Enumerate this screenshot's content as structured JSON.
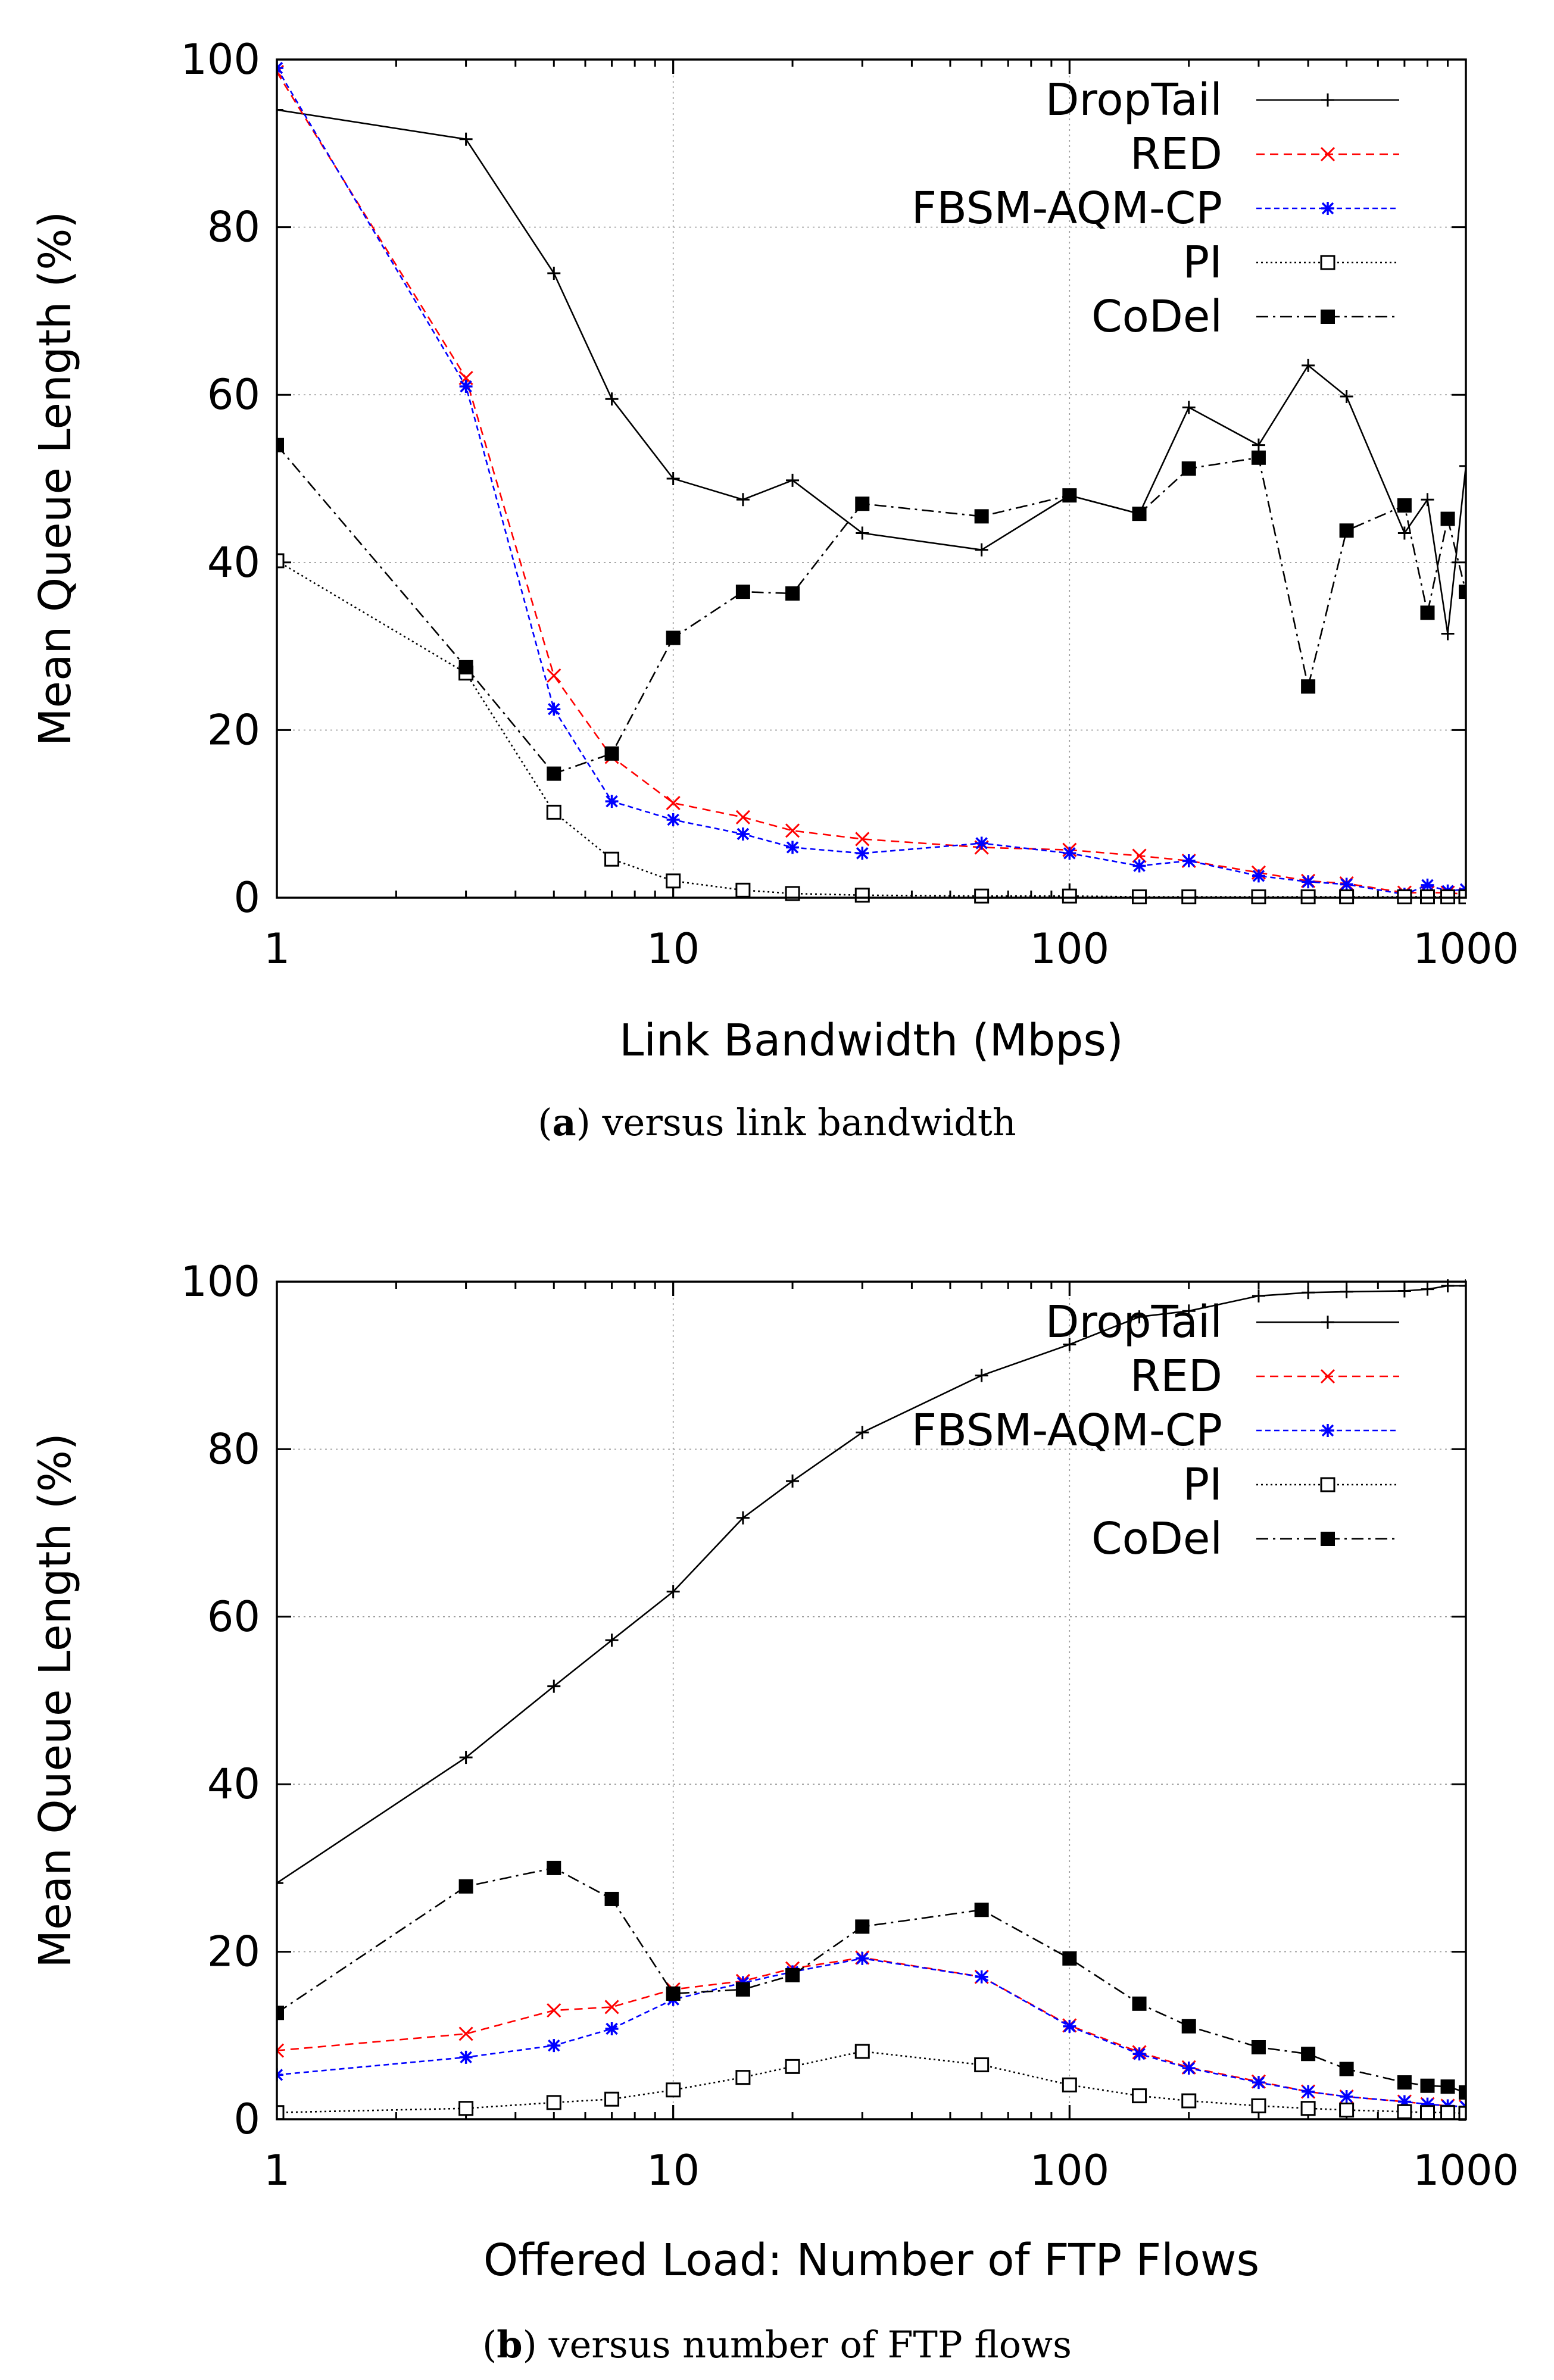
{
  "chart_data": [
    {
      "type": "line",
      "caption_label": "a",
      "caption_text": " versus link bandwidth",
      "xlabel": "Link Bandwidth (Mbps)",
      "ylabel": "Mean Queue Length (%)",
      "xscale": "log",
      "xlim": [
        1,
        1000
      ],
      "ylim": [
        0,
        100
      ],
      "xticks": [
        1,
        10,
        100,
        1000
      ],
      "xtick_labels": [
        "1",
        "10",
        "100",
        "1000"
      ],
      "yticks": [
        0,
        20,
        40,
        60,
        80,
        100
      ],
      "ytick_labels": [
        "0",
        "20",
        "40",
        "60",
        "80",
        "100"
      ],
      "grid": true,
      "legend_position": "top-right",
      "x": [
        1,
        3,
        5,
        7,
        10,
        15,
        20,
        30,
        60,
        100,
        150,
        200,
        300,
        400,
        500,
        700,
        800,
        900,
        1000
      ],
      "series": [
        {
          "name": "DropTail",
          "marker": "plus",
          "values": [
            94,
            90.5,
            74.5,
            59.5,
            50,
            47.5,
            49.8,
            43.5,
            41.5,
            48,
            45.8,
            58.5,
            54,
            63.5,
            59.8,
            43.5,
            47.5,
            31.5,
            51.5
          ]
        },
        {
          "name": "RED",
          "marker": "x",
          "values": [
            98.5,
            62,
            26.5,
            16.8,
            11.3,
            9.6,
            8,
            7,
            6,
            5.7,
            5,
            4.4,
            3,
            2,
            1.7,
            0.6,
            0.6,
            0.6,
            0.4
          ]
        },
        {
          "name": "FBSM-AQM-CP",
          "marker": "star",
          "values": [
            99,
            61,
            22.5,
            11.5,
            9.3,
            7.6,
            6,
            5.3,
            6.5,
            5.3,
            3.8,
            4.4,
            2.6,
            1.9,
            1.6,
            0.4,
            1.5,
            0.8,
            1
          ]
        },
        {
          "name": "PI",
          "marker": "open-square",
          "values": [
            40.2,
            26.8,
            10.2,
            4.6,
            2,
            0.9,
            0.5,
            0.3,
            0.2,
            0.2,
            0.1,
            0.1,
            0.1,
            0.1,
            0.1,
            0.1,
            0.1,
            0.1,
            0.1
          ]
        },
        {
          "name": "CoDel",
          "marker": "filled-square",
          "values": [
            54,
            27.5,
            14.8,
            17.2,
            31,
            36.5,
            36.3,
            47,
            45.5,
            48,
            45.8,
            51.2,
            52.5,
            25.2,
            43.8,
            46.8,
            34,
            45.2,
            36.5
          ]
        }
      ]
    },
    {
      "type": "line",
      "caption_label": "b",
      "caption_text": " versus number of FTP flows",
      "xlabel": "Offered Load: Number of FTP Flows",
      "ylabel": "Mean Queue Length (%)",
      "xscale": "log",
      "xlim": [
        1,
        1000
      ],
      "ylim": [
        0,
        100
      ],
      "xticks": [
        1,
        10,
        100,
        1000
      ],
      "xtick_labels": [
        "1",
        "10",
        "100",
        "1000"
      ],
      "yticks": [
        0,
        20,
        40,
        60,
        80,
        100
      ],
      "ytick_labels": [
        "0",
        "20",
        "40",
        "60",
        "80",
        "100"
      ],
      "grid": true,
      "legend_position": "top-right",
      "x": [
        1,
        3,
        5,
        7,
        10,
        15,
        20,
        30,
        60,
        100,
        150,
        200,
        300,
        400,
        500,
        700,
        800,
        900,
        1000
      ],
      "series": [
        {
          "name": "DropTail",
          "marker": "plus",
          "values": [
            28.2,
            43.2,
            51.7,
            57.2,
            63,
            71.8,
            76.2,
            82,
            88.8,
            92.5,
            95.8,
            96.5,
            98.3,
            98.7,
            98.8,
            98.9,
            99.1,
            99.5,
            99.5
          ]
        },
        {
          "name": "RED",
          "marker": "x",
          "values": [
            8.2,
            10.2,
            13,
            13.4,
            15.5,
            16.5,
            18,
            19.3,
            17,
            11.2,
            8,
            6.2,
            4.5,
            3.3,
            2.7,
            2.1,
            1.8,
            1.6,
            1.5
          ]
        },
        {
          "name": "FBSM-AQM-CP",
          "marker": "star",
          "values": [
            5.3,
            7.4,
            8.8,
            10.8,
            14.3,
            16.3,
            17.6,
            19.2,
            17,
            11.1,
            7.8,
            6.1,
            4.4,
            3.3,
            2.7,
            2.1,
            1.8,
            1.6,
            1.5
          ]
        },
        {
          "name": "PI",
          "marker": "open-square",
          "values": [
            0.8,
            1.3,
            2,
            2.4,
            3.5,
            5,
            6.3,
            8.1,
            6.5,
            4.1,
            2.8,
            2.2,
            1.6,
            1.3,
            1.1,
            0.9,
            0.8,
            0.8,
            0.7
          ]
        },
        {
          "name": "CoDel",
          "marker": "filled-square",
          "values": [
            12.7,
            27.8,
            30,
            26.3,
            15,
            15.5,
            17.2,
            23,
            25,
            19.2,
            13.8,
            11.1,
            8.6,
            7.8,
            6,
            4.4,
            4,
            3.9,
            3.2
          ]
        }
      ]
    }
  ]
}
